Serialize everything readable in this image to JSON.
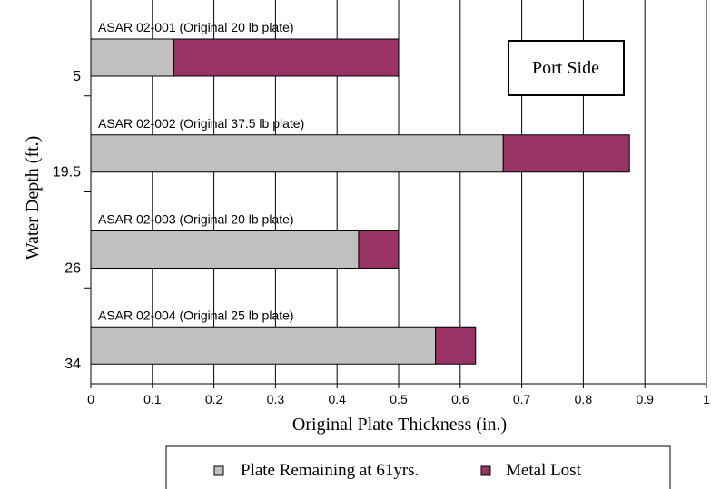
{
  "chart_data": {
    "type": "bar",
    "orientation": "horizontal",
    "stacked": true,
    "xlabel": "Original Plate Thickness (in.)",
    "ylabel": "Water Depth (ft.)",
    "xlim": [
      0,
      1
    ],
    "x_ticks": [
      "0",
      "0.1",
      "0.2",
      "0.3",
      "0.4",
      "0.5",
      "0.6",
      "0.7",
      "0.8",
      "0.9",
      "1"
    ],
    "categories": [
      "5",
      "19.5",
      "26",
      "34"
    ],
    "bar_labels": [
      "ASAR 02-001 (Original 20 lb plate)",
      "ASAR 02-002 (Original 37.5 lb plate)",
      "ASAR 02-003 (Original 20 lb plate)",
      "ASAR 02-004 (Original 25 lb plate)"
    ],
    "series": [
      {
        "name": "Plate Remaining at 61yrs.",
        "values": [
          0.135,
          0.67,
          0.435,
          0.56
        ],
        "color": "#c0c0c0"
      },
      {
        "name": "Metal Lost",
        "values": [
          0.365,
          0.205,
          0.065,
          0.065
        ],
        "color": "#993366"
      }
    ],
    "annotation": "Port Side",
    "grid": "vertical",
    "legend_position": "bottom"
  }
}
